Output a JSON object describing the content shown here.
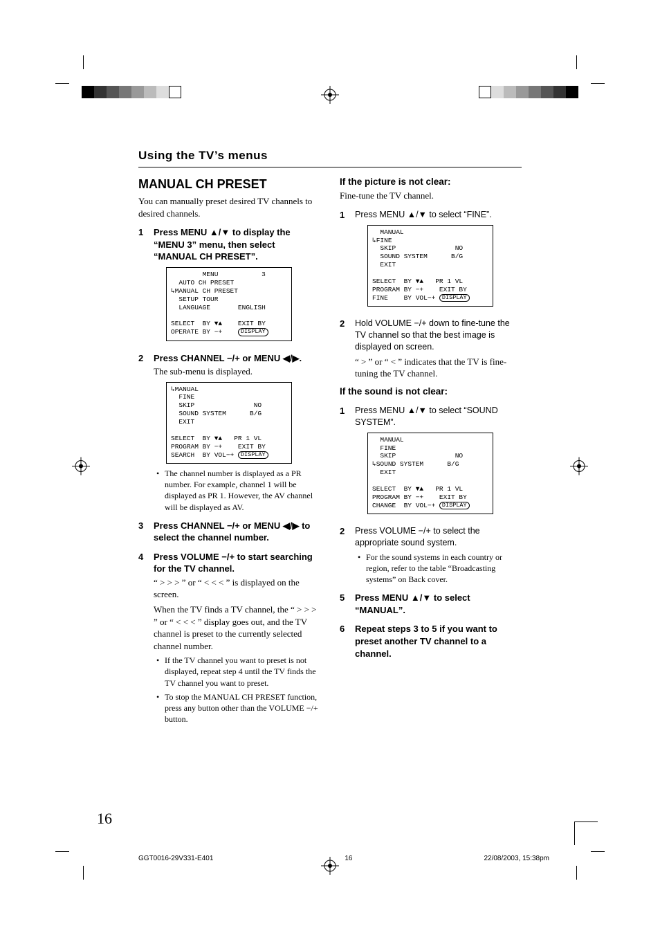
{
  "register_colors": [
    "#000000",
    "#333333",
    "#555555",
    "#777777",
    "#999999",
    "#bbbbbb",
    "#dddddd",
    "#ffffff"
  ],
  "section_title": "Using the TV’s menus",
  "left": {
    "title": "MANUAL CH PRESET",
    "intro": "You can manually preset desired TV channels to desired channels.",
    "step1": "Press MENU ▲/▼ to display the “MENU 3” menu, then select “MANUAL CH PRESET”.",
    "osd1_top": "        MENU           3\n  AUTO CH PRESET\n↳MANUAL CH PRESET\n  SETUP TOUR\n  LANGUAGE       ENGLISH",
    "osd1_bot_l1": "SELECT  BY ▼▲    EXIT BY",
    "osd1_bot_l2_pre": "OPERATE BY −+    ",
    "display_label": "DISPLAY",
    "step2_head": "Press CHANNEL −/+ or MENU ◀/▶.",
    "step2_body": "The sub-menu is displayed.",
    "osd2_top": "↳MANUAL\n  FINE\n  SKIP               NO\n  SOUND SYSTEM      B/G\n  EXIT",
    "osd2_bot_l1": "SELECT  BY ▼▲   PR 1 VL",
    "osd2_bot_l2": "PROGRAM BY −+    EXIT BY",
    "osd2_bot_l3_pre": "SEARCH  BY VOL−+ ",
    "step2_note": "The channel number is displayed as a PR number. For example, channel 1 will be displayed as PR 1. However, the AV channel will be displayed as AV.",
    "step3": "Press CHANNEL −/+ or MENU ◀/▶ to select the channel number.",
    "step4_head": "Press VOLUME −/+ to start searching for the TV channel.",
    "step4_p1": "“ > > > ” or “ < < < ” is displayed on the screen.",
    "step4_p2": "When the TV finds a TV channel, the “ > > > ” or “ < < < ” display goes out, and the TV channel is preset to the currently selected channel number.",
    "step4_b1": "If the TV channel you want to preset is not displayed, repeat step 4 until the TV finds the TV channel you want to preset.",
    "step4_b2": "To stop the MANUAL CH PRESET function, press any button other than the VOLUME −/+ button."
  },
  "right": {
    "h_pic": "If the picture is not clear:",
    "pic_p": "Fine-tune the TV channel.",
    "pic_s1": "Press MENU ▲/▼ to select “FINE”.",
    "osd3_top": "  MANUAL\n↳FINE\n  SKIP               NO\n  SOUND SYSTEM      B/G\n  EXIT",
    "osd3_bot_l1": "SELECT  BY ▼▲   PR 1 VL",
    "osd3_bot_l2": "PROGRAM BY −+    EXIT BY",
    "osd3_bot_l3_pre": "FINE    BY VOL−+ ",
    "pic_s2": "Hold VOLUME −/+ down to fine-tune the TV channel so that the best image is displayed on screen.",
    "pic_s2b": "“ > ” or “ < ” indicates that the TV is fine-tuning the TV channel.",
    "h_snd": "If the sound is not clear:",
    "snd_s1": "Press MENU ▲/▼ to select “SOUND SYSTEM”.",
    "osd4_top": "  MANUAL\n  FINE\n  SKIP               NO\n↳SOUND SYSTEM      B/G\n  EXIT",
    "osd4_bot_l1": "SELECT  BY ▼▲   PR 1 VL",
    "osd4_bot_l2": "PROGRAM BY −+    EXIT BY",
    "osd4_bot_l3_pre": "CHANGE  BY VOL−+ ",
    "snd_s2": "Press VOLUME −/+ to select the appropriate sound system.",
    "snd_s2b": "For the sound systems in each country or region, refer to the table “Broadcasting systems” on Back cover.",
    "s5": "Press MENU ▲/▼ to select “MANUAL”.",
    "s6": "Repeat steps 3 to 5 if you want to preset another TV channel to a channel."
  },
  "page_number": "16",
  "slug_left": "GGT0016-29V331-E401",
  "slug_mid": "16",
  "slug_right": "22/08/2003, 15:38pm"
}
